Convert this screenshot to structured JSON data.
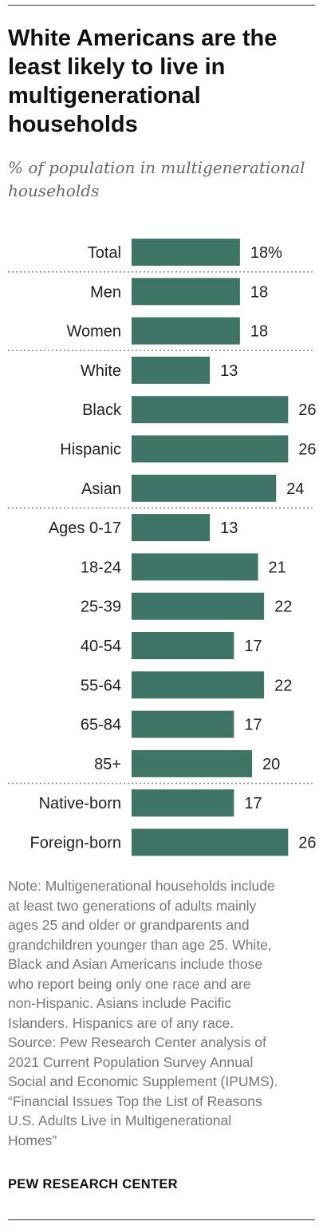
{
  "title": "White Americans are the least likely to live in multigenerational households",
  "subtitle": "% of population in multigenerational households",
  "chart_data": {
    "type": "bar",
    "orientation": "horizontal",
    "categories": [
      "Total",
      "Men",
      "Women",
      "White",
      "Black",
      "Hispanic",
      "Asian",
      "Ages 0-17",
      "18-24",
      "25-39",
      "40-54",
      "55-64",
      "65-84",
      "85+",
      "Native-born",
      "Foreign-born"
    ],
    "values": [
      18,
      18,
      18,
      13,
      26,
      26,
      24,
      13,
      21,
      22,
      17,
      22,
      17,
      20,
      17,
      26
    ],
    "value_labels": [
      "18%",
      "18",
      "18",
      "13",
      "26",
      "26",
      "24",
      "13",
      "21",
      "22",
      "17",
      "22",
      "17",
      "20",
      "17",
      "26"
    ],
    "groups": [
      [
        "Total"
      ],
      [
        "Men",
        "Women"
      ],
      [
        "White",
        "Black",
        "Hispanic",
        "Asian"
      ],
      [
        "Ages 0-17",
        "18-24",
        "25-39",
        "40-54",
        "55-64",
        "65-84",
        "85+"
      ],
      [
        "Native-born",
        "Foreign-born"
      ]
    ],
    "bar_color": "#3e7566",
    "xlim": [
      0,
      26
    ],
    "grid": false,
    "legend": "none"
  },
  "note": {
    "lines": [
      "Note: Multigenerational households include",
      "at least two generations of adults mainly",
      "ages 25 and older or grandparents and",
      "grandchildren younger than age 25. White,",
      "Black and Asian Americans include those",
      "who report being only one race and are",
      "non-Hispanic. Asians include Pacific",
      "Islanders. Hispanics are of any race.",
      "Source: Pew Research Center analysis of",
      "2021 Current Population Survey Annual",
      "Social and Economic Supplement (IPUMS).",
      "“Financial Issues Top the List of Reasons",
      "U.S. Adults Live in Multigenerational",
      "Homes”"
    ]
  },
  "source_name": "PEW RESEARCH CENTER"
}
